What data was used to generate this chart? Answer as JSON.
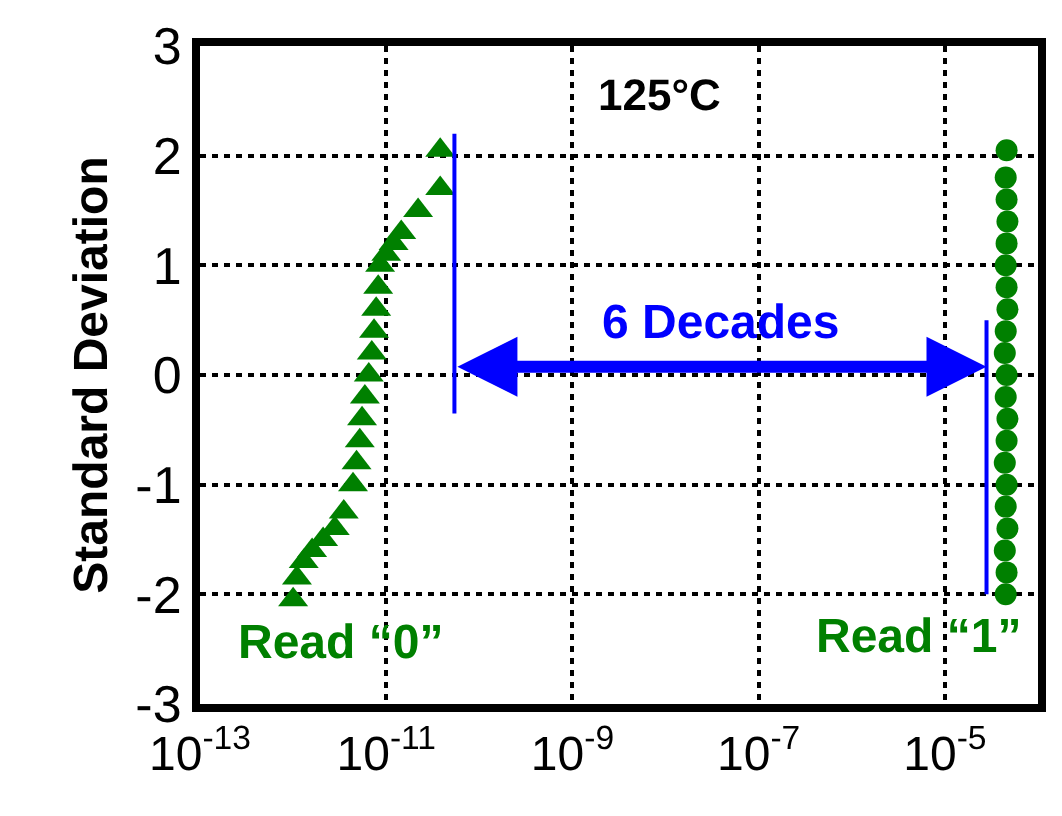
{
  "chart_data": {
    "type": "scatter",
    "title": "125°C",
    "ylabel": "Standard Deviation",
    "series": [
      {
        "name": "Read “0”",
        "color": "#008000",
        "marker": "triangle",
        "x": [
          1e-12,
          1.1e-12,
          1.3e-12,
          1.6e-12,
          2.1e-12,
          2.8e-12,
          3.5e-12,
          4.4e-12,
          4.8e-12,
          5.2e-12,
          5.5e-12,
          5.9e-12,
          6.5e-12,
          7e-12,
          7.4e-12,
          7.8e-12,
          8.2e-12,
          8.6e-12,
          1e-11,
          1.2e-11,
          1.45e-11,
          2.2e-11,
          3.8e-11,
          3.8e-11
        ],
        "values": [
          -2.05,
          -1.85,
          -1.7,
          -1.6,
          -1.5,
          -1.4,
          -1.25,
          -1.0,
          -0.8,
          -0.6,
          -0.4,
          -0.2,
          0,
          0.2,
          0.4,
          0.6,
          0.8,
          1.0,
          1.1,
          1.2,
          1.3,
          1.5,
          1.7,
          2.05
        ]
      },
      {
        "name": "Read “1”",
        "color": "#008000",
        "marker": "circle",
        "x": [
          4.5e-05,
          4.6e-05,
          4.4e-05,
          4.7e-05,
          4.5e-05,
          4.6e-05,
          4.4e-05,
          4.6e-05,
          4.7e-05,
          4.5e-05,
          4.6e-05,
          4.4e-05,
          4.5e-05,
          4.7e-05,
          4.6e-05,
          4.5e-05,
          4.6e-05,
          4.7e-05,
          4.6e-05,
          4.5e-05,
          4.6e-05
        ],
        "values": [
          -2.0,
          -1.8,
          -1.6,
          -1.4,
          -1.2,
          -1.0,
          -0.8,
          -0.6,
          -0.4,
          -0.2,
          0,
          0.2,
          0.4,
          0.6,
          0.8,
          1.0,
          1.2,
          1.4,
          1.6,
          1.8,
          2.05
        ]
      },
      {
        "type": "line",
        "color": "#0000ff",
        "marker": "none",
        "x": [
          5.4e-11,
          5.4e-11
        ],
        "values": [
          2.2,
          -0.35
        ]
      },
      {
        "type": "line",
        "color": "#0000ff",
        "marker": "none",
        "x": [
          2.8e-05,
          2.8e-05
        ],
        "values": [
          0.5,
          -2.0
        ]
      }
    ],
    "annotations": [
      "6 Decades"
    ],
    "log": "x",
    "xlim": [
      1e-13,
      0.0001
    ],
    "xticks": [
      {
        "value": 1e-13,
        "label": "10$^{-13}$"
      },
      {
        "value": 1e-11,
        "label": "10$^{-11}$"
      },
      {
        "value": 1e-09,
        "label": "10$^{-9}$"
      },
      {
        "value": 1e-07,
        "label": "10$^{-7}$"
      },
      {
        "value": 1e-05,
        "label": "10$^{-5}$"
      }
    ],
    "ylim": [
      -3,
      3
    ],
    "yticks": [
      -3,
      -2,
      -1,
      0,
      1,
      2,
      3
    ],
    "grid": true,
    "legend": false
  }
}
